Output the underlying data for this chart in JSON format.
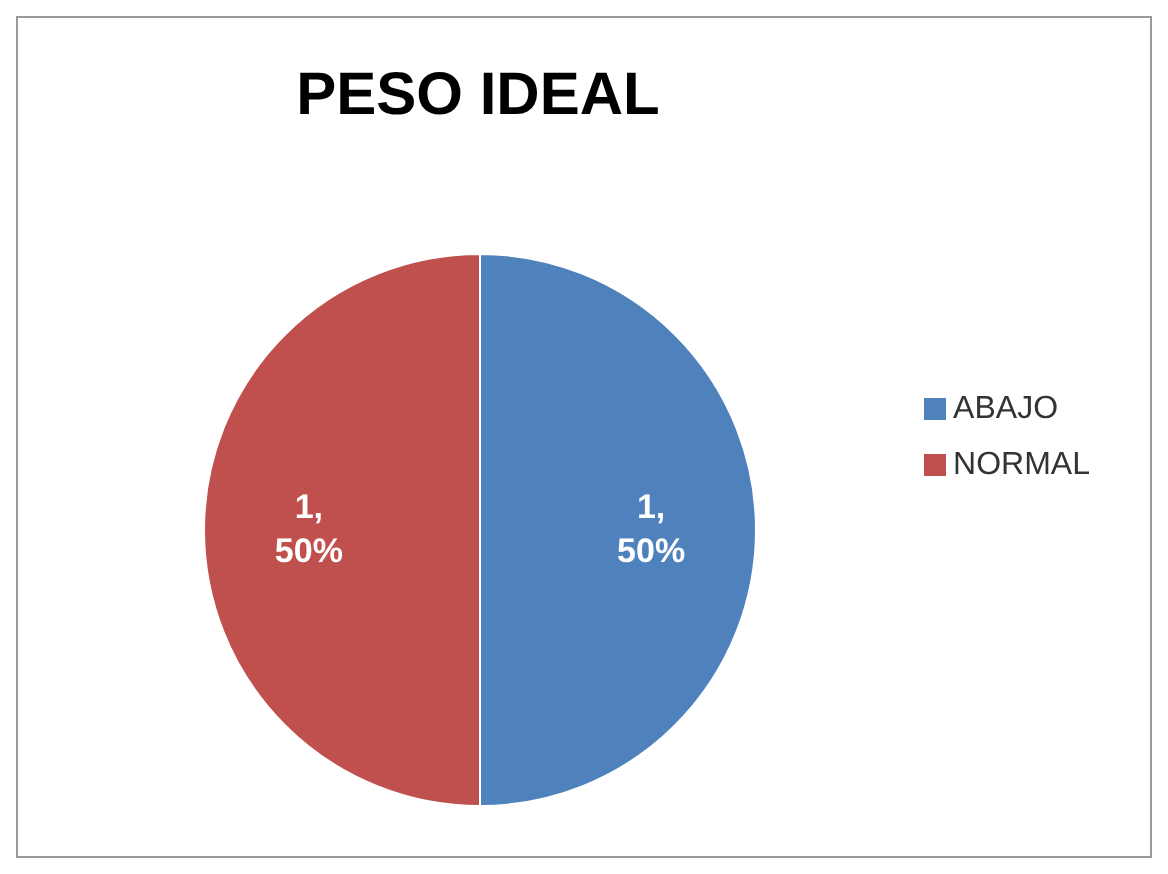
{
  "chart_data": {
    "type": "pie",
    "title": "PESO IDEAL",
    "categories": [
      "ABAJO",
      "NORMAL"
    ],
    "values": [
      1,
      1
    ],
    "colors": [
      "#4f81bd",
      "#c0504d"
    ],
    "value_labels": [
      "1, 50%",
      "1, 50%"
    ],
    "legend": "right"
  }
}
